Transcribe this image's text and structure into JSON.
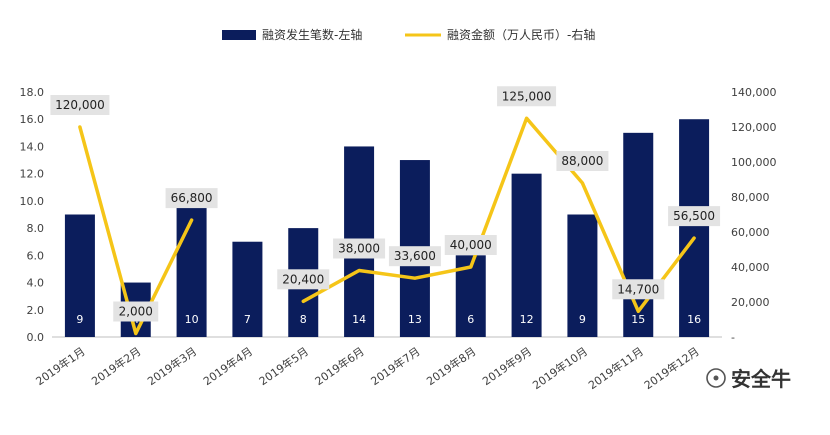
{
  "legend": {
    "bar_label": "融资发生笔数-左轴",
    "line_label": "融资金额（万人民币）-右轴"
  },
  "watermark": {
    "text": "安全牛"
  },
  "colors": {
    "bar": "#0b1d5c",
    "line": "#f5c518",
    "label_box": "#e3e3e3",
    "axis": "#bfbfbf"
  },
  "chart_data": {
    "type": "bar+line",
    "categories": [
      "2019年1月",
      "2019年2月",
      "2019年3月",
      "2019年4月",
      "2019年5月",
      "2019年6月",
      "2019年7月",
      "2019年8月",
      "2019年9月",
      "2019年10月",
      "2019年11月",
      "2019年12月"
    ],
    "series": [
      {
        "name": "融资发生笔数-左轴",
        "type": "bar",
        "axis": "left",
        "values": [
          9,
          4,
          10,
          7,
          8,
          14,
          13,
          6,
          12,
          9,
          15,
          16
        ],
        "labels": [
          "9",
          "4",
          "10",
          "7",
          "8",
          "14",
          "13",
          "6",
          "12",
          "9",
          "15",
          "16"
        ]
      },
      {
        "name": "融资金额（万人民币）-右轴",
        "type": "line",
        "axis": "right",
        "values": [
          120000,
          2000,
          66800,
          null,
          20400,
          38000,
          33600,
          40000,
          125000,
          88000,
          14700,
          56500
        ],
        "labels": [
          "120,000",
          "2,000",
          "66,800",
          "",
          "20,400",
          "38,000",
          "33,600",
          "40,000",
          "125,000",
          "88,000",
          "14,700",
          "56,500"
        ]
      }
    ],
    "y_left": {
      "lim": [
        0,
        18
      ],
      "ticks": [
        0,
        2,
        4,
        6,
        8,
        10,
        12,
        14,
        16,
        18
      ],
      "tick_labels": [
        "0.0",
        "2.0",
        "4.0",
        "6.0",
        "8.0",
        "10.0",
        "12.0",
        "14.0",
        "16.0",
        "18.0"
      ]
    },
    "y_right": {
      "lim": [
        0,
        140000
      ],
      "ticks": [
        0,
        20000,
        40000,
        60000,
        80000,
        100000,
        120000,
        140000
      ],
      "tick_labels": [
        "-",
        "20,000",
        "40,000",
        "60,000",
        "80,000",
        "100,000",
        "120,000",
        "140,000"
      ]
    },
    "grid": false,
    "legend_position": "top"
  }
}
